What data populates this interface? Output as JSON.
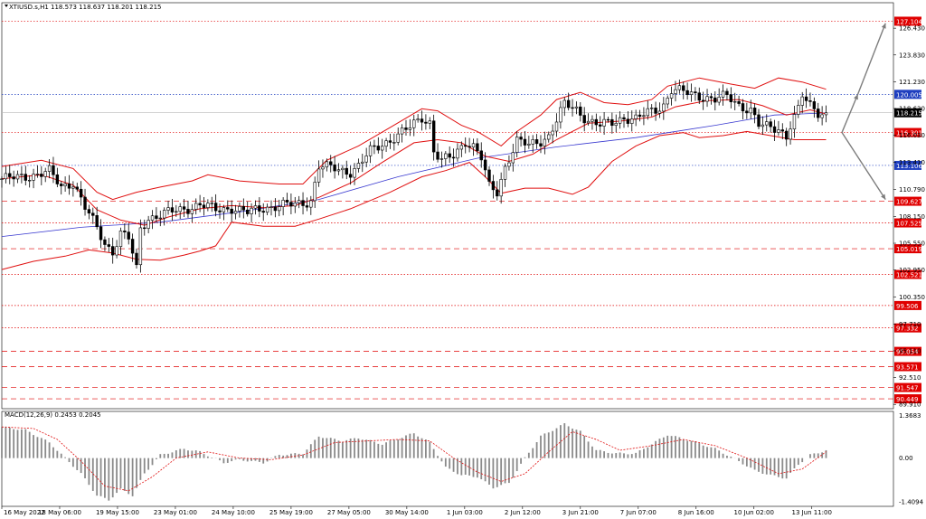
{
  "chart_data": [
    {
      "type": "candlestick",
      "title": "XTIUSD.s,H1  118.573 118.637 118.201 118.215",
      "symbol_header": "XTIUSD.s,H1",
      "ohlc_header": "118.573 118.637 118.201 118.215",
      "ylim": [
        89.49,
        128.9
      ],
      "y_ticks": [
        "126.430",
        "123.830",
        "121.230",
        "118.630",
        "116.030",
        "113.410",
        "110.790",
        "108.150",
        "105.550",
        "102.950",
        "100.350",
        "97.710",
        "95.110",
        "92.510",
        "89.910"
      ],
      "x_ticks": [
        "16 May 2022",
        "18 May 06:00",
        "19 May 15:00",
        "23 May 01:00",
        "24 May 10:00",
        "25 May 19:00",
        "27 May 05:00",
        "30 May 14:00",
        "1 Jun 03:00",
        "2 Jun 12:00",
        "3 Jun 21:00",
        "7 Jun 07:00",
        "8 Jun 16:00",
        "10 Jun 02:00",
        "13 Jun 11:00"
      ],
      "price_levels": [
        {
          "value": 127.104,
          "label": "127.104",
          "style": "dotted",
          "color": "#e00000"
        },
        {
          "value": 120.005,
          "label": "120.005",
          "style": "dotted",
          "color": "#1f3fbf"
        },
        {
          "value": 118.215,
          "label": "118.215",
          "style": "current",
          "color": "#000000"
        },
        {
          "value": 116.301,
          "label": "116.301",
          "style": "dotted",
          "color": "#e00000"
        },
        {
          "value": 113.106,
          "label": "113.106",
          "style": "dotted",
          "color": "#1f3fbf"
        },
        {
          "value": 109.627,
          "label": "109.627",
          "style": "dashed",
          "color": "#e00000"
        },
        {
          "value": 107.525,
          "label": "107.525",
          "style": "dotted",
          "color": "#e00000"
        },
        {
          "value": 105.019,
          "label": "105.019",
          "style": "dashed",
          "color": "#e00000"
        },
        {
          "value": 102.521,
          "label": "102.521",
          "style": "dotted",
          "color": "#e00000"
        },
        {
          "value": 99.506,
          "label": "99.506",
          "style": "dotted",
          "color": "#e00000"
        },
        {
          "value": 97.332,
          "label": "97.332",
          "style": "dotted",
          "color": "#e00000"
        },
        {
          "value": 95.054,
          "label": "95.054",
          "style": "dashed",
          "color": "#e00000"
        },
        {
          "value": 93.571,
          "label": "93.571",
          "style": "dashed",
          "color": "#e00000"
        },
        {
          "value": 91.547,
          "label": "91.547",
          "style": "dashed",
          "color": "#e00000"
        },
        {
          "value": 90.449,
          "label": "90.449",
          "style": "dashed",
          "color": "#e00000"
        }
      ],
      "price_path": [
        [
          0,
          111.8
        ],
        [
          4,
          111.9
        ],
        [
          8,
          112.2
        ],
        [
          12,
          112.5
        ],
        [
          15,
          111.0
        ],
        [
          18,
          111.5
        ],
        [
          21,
          109.0
        ],
        [
          24,
          107.0
        ],
        [
          26,
          105.5
        ],
        [
          28,
          104.8
        ],
        [
          30,
          106.5
        ],
        [
          32,
          106.0
        ],
        [
          34,
          103.0
        ],
        [
          35,
          107.0
        ],
        [
          37,
          108.0
        ],
        [
          40,
          108.3
        ],
        [
          43,
          108.6
        ],
        [
          46,
          108.9
        ],
        [
          50,
          109.3
        ],
        [
          54,
          108.8
        ],
        [
          58,
          109.0
        ],
        [
          62,
          108.5
        ],
        [
          66,
          109.0
        ],
        [
          70,
          109.2
        ],
        [
          74,
          109.3
        ],
        [
          78,
          109.7
        ],
        [
          80,
          113.0
        ],
        [
          84,
          112.8
        ],
        [
          88,
          112.5
        ],
        [
          90,
          113.0
        ],
        [
          93,
          114.5
        ],
        [
          96,
          115.2
        ],
        [
          100,
          116.0
        ],
        [
          103,
          116.8
        ],
        [
          106,
          117.8
        ],
        [
          108,
          117.3
        ],
        [
          109,
          114.5
        ],
        [
          111,
          113.5
        ],
        [
          114,
          114.0
        ],
        [
          117,
          115.5
        ],
        [
          119,
          115.0
        ],
        [
          121,
          113.8
        ],
        [
          123,
          111.0
        ],
        [
          125,
          110.5
        ],
        [
          127,
          113.0
        ],
        [
          130,
          115.5
        ],
        [
          133,
          115.0
        ],
        [
          136,
          115.5
        ],
        [
          138,
          116.0
        ],
        [
          140,
          117.5
        ],
        [
          142,
          119.0
        ],
        [
          145,
          118.5
        ],
        [
          148,
          117.5
        ],
        [
          151,
          117.0
        ],
        [
          154,
          117.2
        ],
        [
          157,
          117.8
        ],
        [
          160,
          117.6
        ],
        [
          163,
          118.2
        ],
        [
          165,
          118.5
        ],
        [
          167,
          119.0
        ],
        [
          169,
          120.5
        ],
        [
          171,
          120.3
        ],
        [
          174,
          120.0
        ],
        [
          177,
          119.8
        ],
        [
          180,
          119.5
        ],
        [
          183,
          119.8
        ],
        [
          186,
          119.0
        ],
        [
          189,
          118.5
        ],
        [
          191,
          117.0
        ],
        [
          193,
          116.8
        ],
        [
          196,
          116.7
        ],
        [
          198,
          116.0
        ],
        [
          199,
          117.0
        ],
        [
          201,
          118.5
        ],
        [
          202,
          119.8
        ],
        [
          204,
          118.9
        ],
        [
          206,
          118.3
        ],
        [
          208,
          118.215
        ]
      ],
      "bollinger_upper": [
        [
          0,
          113.0
        ],
        [
          10,
          113.6
        ],
        [
          18,
          112.8
        ],
        [
          24,
          110.5
        ],
        [
          28,
          109.8
        ],
        [
          34,
          110.5
        ],
        [
          40,
          111.0
        ],
        [
          48,
          111.6
        ],
        [
          52,
          112.2
        ],
        [
          60,
          111.6
        ],
        [
          70,
          111.3
        ],
        [
          76,
          111.3
        ],
        [
          82,
          113.6
        ],
        [
          90,
          115.0
        ],
        [
          98,
          116.8
        ],
        [
          106,
          118.6
        ],
        [
          110,
          118.4
        ],
        [
          116,
          117.0
        ],
        [
          120,
          116.4
        ],
        [
          126,
          115.0
        ],
        [
          130,
          116.4
        ],
        [
          136,
          118.0
        ],
        [
          140,
          119.5
        ],
        [
          146,
          120.2
        ],
        [
          152,
          119.2
        ],
        [
          158,
          119.0
        ],
        [
          164,
          119.5
        ],
        [
          168,
          120.8
        ],
        [
          176,
          121.6
        ],
        [
          184,
          121.0
        ],
        [
          190,
          120.6
        ],
        [
          196,
          121.6
        ],
        [
          202,
          121.2
        ],
        [
          208,
          120.5
        ]
      ],
      "bollinger_middle": [
        [
          0,
          111.8
        ],
        [
          10,
          112.2
        ],
        [
          18,
          111.2
        ],
        [
          24,
          108.8
        ],
        [
          30,
          107.8
        ],
        [
          36,
          107.3
        ],
        [
          42,
          108.1
        ],
        [
          50,
          108.9
        ],
        [
          58,
          109.2
        ],
        [
          66,
          109.0
        ],
        [
          74,
          109.2
        ],
        [
          80,
          110.0
        ],
        [
          88,
          111.4
        ],
        [
          96,
          113.4
        ],
        [
          104,
          115.3
        ],
        [
          110,
          115.6
        ],
        [
          116,
          115.3
        ],
        [
          122,
          114.0
        ],
        [
          128,
          113.5
        ],
        [
          134,
          114.2
        ],
        [
          140,
          115.6
        ],
        [
          148,
          117.2
        ],
        [
          156,
          117.4
        ],
        [
          164,
          117.8
        ],
        [
          170,
          118.8
        ],
        [
          178,
          119.4
        ],
        [
          186,
          119.5
        ],
        [
          192,
          118.9
        ],
        [
          198,
          118.0
        ],
        [
          204,
          118.5
        ],
        [
          208,
          118.1
        ]
      ],
      "bollinger_lower": [
        [
          0,
          103.0
        ],
        [
          8,
          103.8
        ],
        [
          16,
          104.3
        ],
        [
          22,
          104.9
        ],
        [
          28,
          104.6
        ],
        [
          34,
          104.0
        ],
        [
          40,
          103.9
        ],
        [
          46,
          104.4
        ],
        [
          50,
          104.8
        ],
        [
          54,
          105.3
        ],
        [
          58,
          107.6
        ],
        [
          66,
          107.2
        ],
        [
          74,
          107.2
        ],
        [
          80,
          107.9
        ],
        [
          88,
          108.9
        ],
        [
          98,
          110.5
        ],
        [
          106,
          112.0
        ],
        [
          112,
          112.6
        ],
        [
          118,
          113.4
        ],
        [
          122,
          112.0
        ],
        [
          126,
          110.4
        ],
        [
          132,
          110.9
        ],
        [
          138,
          110.9
        ],
        [
          144,
          110.3
        ],
        [
          148,
          111.0
        ],
        [
          154,
          113.5
        ],
        [
          160,
          115.0
        ],
        [
          166,
          116.0
        ],
        [
          172,
          116.3
        ],
        [
          176,
          115.8
        ],
        [
          182,
          116.0
        ],
        [
          188,
          116.4
        ],
        [
          194,
          116.0
        ],
        [
          200,
          115.6
        ],
        [
          208,
          115.6
        ]
      ],
      "moving_average": [
        [
          0,
          106.2
        ],
        [
          20,
          107.1
        ],
        [
          40,
          107.6
        ],
        [
          60,
          108.6
        ],
        [
          80,
          109.8
        ],
        [
          100,
          112.0
        ],
        [
          120,
          113.8
        ],
        [
          140,
          114.9
        ],
        [
          160,
          115.8
        ],
        [
          180,
          117.0
        ],
        [
          195,
          118.0
        ],
        [
          208,
          118.2
        ]
      ],
      "forecast_arrows": [
        {
          "from": [
            212,
            116.3
          ],
          "to": [
            216,
            120.0
          ]
        },
        {
          "from": [
            216,
            120.0
          ],
          "to": [
            223,
            126.9
          ]
        },
        {
          "from": [
            212,
            116.3
          ],
          "to": [
            223,
            109.8
          ]
        }
      ]
    },
    {
      "type": "bar",
      "title": "MACD(12,26,9) 0.2453 0.2045",
      "header": "MACD(12,26,9) 0.2453 0.2045",
      "ylim": [
        -1.55,
        1.5
      ],
      "y_ticks": [
        "1.3683",
        "0.00",
        "-1.4094"
      ],
      "histogram_path": [
        [
          0,
          1.0
        ],
        [
          6,
          0.9
        ],
        [
          12,
          0.5
        ],
        [
          16,
          0.0
        ],
        [
          20,
          -0.5
        ],
        [
          24,
          -1.2
        ],
        [
          27,
          -1.35
        ],
        [
          30,
          -1.0
        ],
        [
          33,
          -1.2
        ],
        [
          36,
          -0.5
        ],
        [
          40,
          0.1
        ],
        [
          46,
          0.3
        ],
        [
          50,
          0.2
        ],
        [
          56,
          -0.15
        ],
        [
          60,
          -0.05
        ],
        [
          66,
          -0.15
        ],
        [
          70,
          0.1
        ],
        [
          76,
          0.15
        ],
        [
          80,
          0.7
        ],
        [
          86,
          0.55
        ],
        [
          90,
          0.65
        ],
        [
          96,
          0.45
        ],
        [
          104,
          0.8
        ],
        [
          108,
          0.5
        ],
        [
          112,
          -0.3
        ],
        [
          116,
          -0.55
        ],
        [
          120,
          -0.6
        ],
        [
          124,
          -0.95
        ],
        [
          128,
          -0.8
        ],
        [
          132,
          0.0
        ],
        [
          136,
          0.7
        ],
        [
          142,
          1.1
        ],
        [
          146,
          0.85
        ],
        [
          150,
          0.25
        ],
        [
          155,
          0.15
        ],
        [
          160,
          0.15
        ],
        [
          168,
          0.75
        ],
        [
          174,
          0.55
        ],
        [
          180,
          0.3
        ],
        [
          186,
          -0.1
        ],
        [
          190,
          -0.4
        ],
        [
          194,
          -0.55
        ],
        [
          198,
          -0.65
        ],
        [
          201,
          -0.2
        ],
        [
          204,
          0.1
        ],
        [
          208,
          0.2453
        ]
      ],
      "signal_path": [
        [
          0,
          1.0
        ],
        [
          8,
          0.95
        ],
        [
          14,
          0.6
        ],
        [
          20,
          -0.1
        ],
        [
          26,
          -0.9
        ],
        [
          32,
          -1.05
        ],
        [
          38,
          -0.6
        ],
        [
          44,
          0.0
        ],
        [
          52,
          0.2
        ],
        [
          60,
          0.0
        ],
        [
          68,
          -0.05
        ],
        [
          76,
          0.1
        ],
        [
          84,
          0.5
        ],
        [
          92,
          0.55
        ],
        [
          100,
          0.6
        ],
        [
          108,
          0.55
        ],
        [
          114,
          0.0
        ],
        [
          120,
          -0.45
        ],
        [
          126,
          -0.75
        ],
        [
          132,
          -0.5
        ],
        [
          138,
          0.2
        ],
        [
          144,
          0.85
        ],
        [
          150,
          0.6
        ],
        [
          156,
          0.25
        ],
        [
          164,
          0.4
        ],
        [
          172,
          0.6
        ],
        [
          180,
          0.4
        ],
        [
          188,
          0.0
        ],
        [
          196,
          -0.5
        ],
        [
          202,
          -0.35
        ],
        [
          208,
          0.2045
        ]
      ]
    }
  ]
}
